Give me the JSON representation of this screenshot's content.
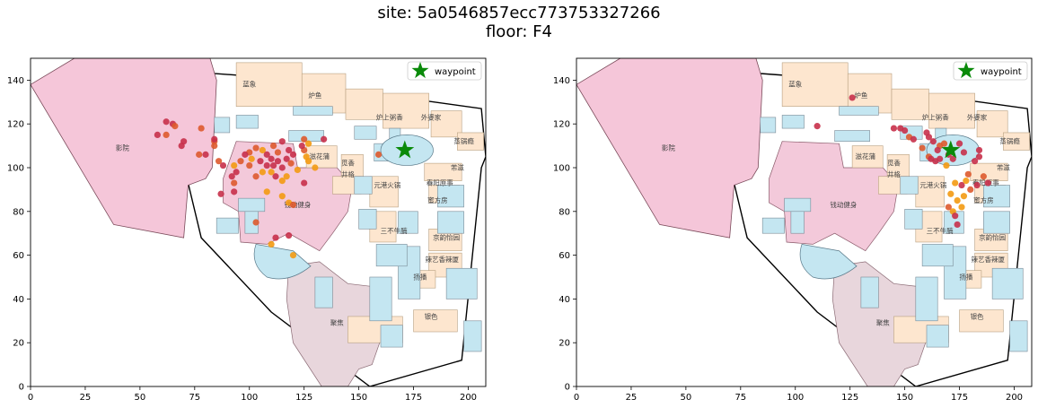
{
  "figure": {
    "title_line1": "site: 5a0546857ecc773753327266",
    "title_line2": "floor: F4"
  },
  "colors": {
    "cinema": "#f5c6d9",
    "cinema_stroke": "#7a4a5a",
    "gym": "#f3c9da",
    "shop": "#fde6cf",
    "atrium": "#c4e6f1",
    "service": "#d3e3ee",
    "lower": "#e8d6dc",
    "outline": "#000000",
    "waypoint": "#0a8a0a",
    "dot_red": "#c8304a",
    "dot_orange": "#f39a12",
    "dot_mid": "#de5a2e"
  },
  "map_labels": [
    {
      "text": "蓝象",
      "x": 100,
      "y": 137
    },
    {
      "text": "炉鱼",
      "x": 130,
      "y": 132
    },
    {
      "text": "炉上粥香",
      "x": 164,
      "y": 122
    },
    {
      "text": "外婆家",
      "x": 183,
      "y": 122
    },
    {
      "text": "蒸锅瘾",
      "x": 198,
      "y": 111
    },
    {
      "text": "影院",
      "x": 42,
      "y": 108
    },
    {
      "text": "滋花蒲",
      "x": 132,
      "y": 104
    },
    {
      "text": "觅香",
      "x": 145,
      "y": 101
    },
    {
      "text": "井格",
      "x": 145,
      "y": 96
    },
    {
      "text": "芾滋",
      "x": 195,
      "y": 99
    },
    {
      "text": "春阳原事",
      "x": 187,
      "y": 92
    },
    {
      "text": "元港火锅",
      "x": 163,
      "y": 91
    },
    {
      "text": "蜜方房",
      "x": 186,
      "y": 84
    },
    {
      "text": "钱动健身",
      "x": 122,
      "y": 82
    },
    {
      "text": "三不牛腩",
      "x": 166,
      "y": 70
    },
    {
      "text": "京韵怡园",
      "x": 190,
      "y": 67
    },
    {
      "text": "辣艺香辣厦",
      "x": 188,
      "y": 57
    },
    {
      "text": "扬播",
      "x": 178,
      "y": 49
    },
    {
      "text": "聚焦",
      "x": 140,
      "y": 28
    },
    {
      "text": "银色",
      "x": 183,
      "y": 31
    }
  ],
  "chart_data": [
    {
      "type": "scatter",
      "title": "",
      "xlabel": "",
      "ylabel": "",
      "xlim": [
        0,
        208
      ],
      "ylim": [
        0,
        150
      ],
      "xticks": [
        0,
        25,
        50,
        75,
        100,
        125,
        150,
        175,
        200
      ],
      "yticks": [
        0,
        20,
        40,
        60,
        80,
        100,
        120,
        140
      ],
      "grid": false,
      "legend_position": "top-right",
      "waypoint": {
        "name": "waypoint",
        "x": 171,
        "y": 108
      },
      "points": [
        {
          "x": 62,
          "y": 121,
          "c": "red"
        },
        {
          "x": 65,
          "y": 120,
          "c": "red"
        },
        {
          "x": 66,
          "y": 119,
          "c": "mid"
        },
        {
          "x": 58,
          "y": 115,
          "c": "red"
        },
        {
          "x": 62,
          "y": 115,
          "c": "mid"
        },
        {
          "x": 70,
          "y": 112,
          "c": "red"
        },
        {
          "x": 69,
          "y": 110,
          "c": "red"
        },
        {
          "x": 78,
          "y": 118,
          "c": "mid"
        },
        {
          "x": 84,
          "y": 112,
          "c": "mid"
        },
        {
          "x": 84,
          "y": 110,
          "c": "mid"
        },
        {
          "x": 77,
          "y": 106,
          "c": "mid"
        },
        {
          "x": 80,
          "y": 106,
          "c": "red"
        },
        {
          "x": 86,
          "y": 103,
          "c": "mid"
        },
        {
          "x": 88,
          "y": 101,
          "c": "red"
        },
        {
          "x": 93,
          "y": 101,
          "c": "orange"
        },
        {
          "x": 94,
          "y": 98,
          "c": "red"
        },
        {
          "x": 96,
          "y": 103,
          "c": "mid"
        },
        {
          "x": 92,
          "y": 96,
          "c": "red"
        },
        {
          "x": 93,
          "y": 93,
          "c": "mid"
        },
        {
          "x": 93,
          "y": 89,
          "c": "red"
        },
        {
          "x": 87,
          "y": 88,
          "c": "red"
        },
        {
          "x": 100,
          "y": 107,
          "c": "mid"
        },
        {
          "x": 103,
          "y": 109,
          "c": "mid"
        },
        {
          "x": 106,
          "y": 108,
          "c": "orange"
        },
        {
          "x": 108,
          "y": 106,
          "c": "red"
        },
        {
          "x": 110,
          "y": 104,
          "c": "red"
        },
        {
          "x": 111,
          "y": 101,
          "c": "red"
        },
        {
          "x": 113,
          "y": 103,
          "c": "red"
        },
        {
          "x": 115,
          "y": 100,
          "c": "red"
        },
        {
          "x": 117,
          "y": 104,
          "c": "red"
        },
        {
          "x": 118,
          "y": 108,
          "c": "red"
        },
        {
          "x": 119,
          "y": 102,
          "c": "mid"
        },
        {
          "x": 112,
          "y": 96,
          "c": "red"
        },
        {
          "x": 108,
          "y": 101,
          "c": "red"
        },
        {
          "x": 106,
          "y": 98,
          "c": "orange"
        },
        {
          "x": 103,
          "y": 96,
          "c": "mid"
        },
        {
          "x": 100,
          "y": 101,
          "c": "mid"
        },
        {
          "x": 101,
          "y": 104,
          "c": "orange"
        },
        {
          "x": 98,
          "y": 106,
          "c": "red"
        },
        {
          "x": 115,
          "y": 112,
          "c": "red"
        },
        {
          "x": 111,
          "y": 110,
          "c": "mid"
        },
        {
          "x": 120,
          "y": 106,
          "c": "red"
        },
        {
          "x": 122,
          "y": 99,
          "c": "orange"
        },
        {
          "x": 117,
          "y": 96,
          "c": "orange"
        },
        {
          "x": 115,
          "y": 94,
          "c": "orange"
        },
        {
          "x": 110,
          "y": 98,
          "c": "orange"
        },
        {
          "x": 115,
          "y": 87,
          "c": "orange"
        },
        {
          "x": 118,
          "y": 84,
          "c": "orange"
        },
        {
          "x": 120,
          "y": 83,
          "c": "mid"
        },
        {
          "x": 108,
          "y": 89,
          "c": "orange"
        },
        {
          "x": 105,
          "y": 103,
          "c": "red"
        },
        {
          "x": 125,
          "y": 108,
          "c": "mid"
        },
        {
          "x": 126,
          "y": 105,
          "c": "orange"
        },
        {
          "x": 127,
          "y": 103,
          "c": "orange"
        },
        {
          "x": 125,
          "y": 113,
          "c": "mid"
        },
        {
          "x": 127,
          "y": 111,
          "c": "orange"
        },
        {
          "x": 124,
          "y": 110,
          "c": "red"
        },
        {
          "x": 134,
          "y": 113,
          "c": "red"
        },
        {
          "x": 130,
          "y": 100,
          "c": "orange"
        },
        {
          "x": 125,
          "y": 93,
          "c": "red"
        },
        {
          "x": 103,
          "y": 75,
          "c": "mid"
        },
        {
          "x": 112,
          "y": 68,
          "c": "red"
        },
        {
          "x": 118,
          "y": 69,
          "c": "red"
        },
        {
          "x": 110,
          "y": 65,
          "c": "orange"
        },
        {
          "x": 120,
          "y": 60,
          "c": "orange"
        },
        {
          "x": 159,
          "y": 106,
          "c": "mid"
        },
        {
          "x": 84,
          "y": 113,
          "c": "red"
        },
        {
          "x": 113,
          "y": 107,
          "c": "mid"
        }
      ]
    },
    {
      "type": "scatter",
      "title": "",
      "xlabel": "",
      "ylabel": "",
      "xlim": [
        0,
        208
      ],
      "ylim": [
        0,
        150
      ],
      "xticks": [
        0,
        25,
        50,
        75,
        100,
        125,
        150,
        175,
        200
      ],
      "yticks": [
        0,
        20,
        40,
        60,
        80,
        100,
        120,
        140
      ],
      "grid": false,
      "legend_position": "top-right",
      "waypoint": {
        "name": "waypoint",
        "x": 171,
        "y": 108
      },
      "points": [
        {
          "x": 110,
          "y": 119,
          "c": "red"
        },
        {
          "x": 126,
          "y": 132,
          "c": "red"
        },
        {
          "x": 145,
          "y": 118,
          "c": "red"
        },
        {
          "x": 148,
          "y": 118,
          "c": "red"
        },
        {
          "x": 150,
          "y": 117,
          "c": "red"
        },
        {
          "x": 152,
          "y": 114,
          "c": "mid"
        },
        {
          "x": 154,
          "y": 113,
          "c": "red"
        },
        {
          "x": 160,
          "y": 116,
          "c": "red"
        },
        {
          "x": 161,
          "y": 114,
          "c": "red"
        },
        {
          "x": 163,
          "y": 112,
          "c": "red"
        },
        {
          "x": 166,
          "y": 110,
          "c": "mid"
        },
        {
          "x": 158,
          "y": 109,
          "c": "mid"
        },
        {
          "x": 165,
          "y": 108,
          "c": "red"
        },
        {
          "x": 168,
          "y": 111,
          "c": "mid"
        },
        {
          "x": 161,
          "y": 105,
          "c": "mid"
        },
        {
          "x": 162,
          "y": 104,
          "c": "red"
        },
        {
          "x": 164,
          "y": 103,
          "c": "red"
        },
        {
          "x": 166,
          "y": 104,
          "c": "red"
        },
        {
          "x": 170,
          "y": 106,
          "c": "red"
        },
        {
          "x": 172,
          "y": 104,
          "c": "red"
        },
        {
          "x": 169,
          "y": 101,
          "c": "orange"
        },
        {
          "x": 175,
          "y": 111,
          "c": "red"
        },
        {
          "x": 177,
          "y": 107,
          "c": "red"
        },
        {
          "x": 184,
          "y": 108,
          "c": "red"
        },
        {
          "x": 184,
          "y": 105,
          "c": "red"
        },
        {
          "x": 182,
          "y": 103,
          "c": "red"
        },
        {
          "x": 173,
          "y": 93,
          "c": "orange"
        },
        {
          "x": 176,
          "y": 92,
          "c": "red"
        },
        {
          "x": 178,
          "y": 94,
          "c": "orange"
        },
        {
          "x": 180,
          "y": 90,
          "c": "mid"
        },
        {
          "x": 183,
          "y": 92,
          "c": "red"
        },
        {
          "x": 186,
          "y": 96,
          "c": "mid"
        },
        {
          "x": 188,
          "y": 93,
          "c": "red"
        },
        {
          "x": 171,
          "y": 88,
          "c": "orange"
        },
        {
          "x": 174,
          "y": 85,
          "c": "orange"
        },
        {
          "x": 176,
          "y": 82,
          "c": "orange"
        },
        {
          "x": 172,
          "y": 80,
          "c": "orange"
        },
        {
          "x": 173,
          "y": 78,
          "c": "red"
        },
        {
          "x": 174,
          "y": 74,
          "c": "red"
        },
        {
          "x": 177,
          "y": 87,
          "c": "orange"
        },
        {
          "x": 170,
          "y": 82,
          "c": "mid"
        },
        {
          "x": 179,
          "y": 97,
          "c": "mid"
        }
      ]
    }
  ]
}
